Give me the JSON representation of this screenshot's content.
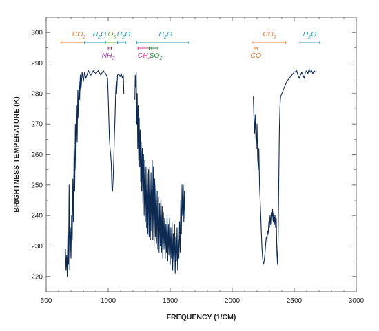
{
  "chart_data": {
    "type": "line",
    "title": "",
    "xlabel": "FREQUENCY (1/CM)",
    "ylabel": "BRIGHTNESS TEMPERATURE (K)",
    "xlim": [
      500,
      3000
    ],
    "ylim": [
      215,
      305
    ],
    "x_ticks": [
      500,
      1000,
      1500,
      2000,
      2500,
      3000
    ],
    "y_ticks": [
      220,
      230,
      240,
      250,
      260,
      270,
      280,
      290,
      300
    ],
    "grid": false,
    "line_color": "#0d2a52",
    "series": [
      {
        "segments": [
          [
            [
              655,
              229
            ],
            [
              660,
              222
            ],
            [
              665,
              227
            ],
            [
              670,
              220
            ],
            [
              675,
              234
            ],
            [
              680,
              224
            ],
            [
              685,
              250
            ],
            [
              690,
              222
            ],
            [
              695,
              236
            ],
            [
              700,
              226
            ],
            [
              705,
              240
            ],
            [
              710,
              232
            ],
            [
              715,
              252
            ],
            [
              720,
              238
            ],
            [
              725,
              262
            ],
            [
              730,
              248
            ],
            [
              735,
              270
            ],
            [
              740,
              255
            ],
            [
              745,
              276
            ],
            [
              750,
              264
            ],
            [
              755,
              281
            ],
            [
              760,
              272
            ],
            [
              765,
              284
            ],
            [
              770,
              278
            ],
            [
              775,
              286
            ],
            [
              780,
              281
            ],
            [
              790,
              287
            ],
            [
              800,
              284
            ],
            [
              810,
              287
            ],
            [
              820,
              285
            ],
            [
              840,
              287.5
            ],
            [
              860,
              286
            ],
            [
              880,
              287.5
            ],
            [
              900,
              286.5
            ],
            [
              920,
              287.5
            ],
            [
              940,
              286
            ],
            [
              960,
              287.5
            ],
            [
              980,
              286.5
            ],
            [
              995,
              285
            ],
            [
              1000,
              279
            ],
            [
              1005,
              272
            ],
            [
              1010,
              265
            ],
            [
              1015,
              262
            ],
            [
              1020,
              260
            ],
            [
              1025,
              257
            ],
            [
              1030,
              249
            ],
            [
              1035,
              248
            ],
            [
              1040,
              252
            ],
            [
              1045,
              258
            ],
            [
              1050,
              266
            ],
            [
              1055,
              272
            ],
            [
              1060,
              280
            ],
            [
              1065,
              284
            ],
            [
              1068,
              280
            ],
            [
              1075,
              286
            ],
            [
              1085,
              286.5
            ],
            [
              1095,
              285.5
            ],
            [
              1105,
              286.5
            ],
            [
              1115,
              285
            ],
            [
              1122,
              286
            ],
            [
              1126,
              280
            ]
          ],
          [
            [
              1215,
              278
            ],
            [
              1218,
              286
            ],
            [
              1222,
              282
            ],
            [
              1226,
              287
            ],
            [
              1230,
              270
            ],
            [
              1234,
              280
            ],
            [
              1238,
              262
            ],
            [
              1242,
              276
            ],
            [
              1246,
              258
            ],
            [
              1250,
              272
            ],
            [
              1254,
              256
            ],
            [
              1258,
              268
            ],
            [
              1262,
              251
            ],
            [
              1266,
              264
            ],
            [
              1270,
              248
            ],
            [
              1275,
              262
            ],
            [
              1280,
              244
            ],
            [
              1285,
              260
            ],
            [
              1290,
              240
            ],
            [
              1295,
              258
            ],
            [
              1300,
              238
            ],
            [
              1305,
              256
            ],
            [
              1310,
              236
            ],
            [
              1315,
              254
            ],
            [
              1320,
              234
            ],
            [
              1325,
              255
            ],
            [
              1330,
              233
            ],
            [
              1335,
              256
            ],
            [
              1340,
              232
            ],
            [
              1345,
              254
            ],
            [
              1350,
              235
            ],
            [
              1355,
              258
            ],
            [
              1360,
              232
            ],
            [
              1365,
              256
            ],
            [
              1370,
              230
            ],
            [
              1375,
              252
            ],
            [
              1380,
              233
            ],
            [
              1385,
              250
            ],
            [
              1390,
              231
            ],
            [
              1395,
              248
            ],
            [
              1400,
              229
            ],
            [
              1405,
              246
            ],
            [
              1410,
              228
            ],
            [
              1415,
              244
            ],
            [
              1420,
              230
            ],
            [
              1425,
              246
            ],
            [
              1430,
              228
            ],
            [
              1435,
              243
            ],
            [
              1440,
              226
            ],
            [
              1445,
              241
            ],
            [
              1450,
              229
            ],
            [
              1455,
              239
            ],
            [
              1460,
              226
            ],
            [
              1465,
              237
            ],
            [
              1470,
              228
            ],
            [
              1475,
              240
            ],
            [
              1480,
              225
            ],
            [
              1485,
              237
            ],
            [
              1490,
              227
            ],
            [
              1495,
              239
            ],
            [
              1500,
              224
            ],
            [
              1505,
              236
            ],
            [
              1510,
              226
            ],
            [
              1515,
              238
            ],
            [
              1520,
              222
            ],
            [
              1525,
              234
            ],
            [
              1530,
              225
            ],
            [
              1535,
              237
            ],
            [
              1540,
              221
            ],
            [
              1545,
              233
            ],
            [
              1550,
              225
            ],
            [
              1555,
              236
            ],
            [
              1560,
              222
            ],
            [
              1565,
              232
            ],
            [
              1570,
              226
            ],
            [
              1575,
              238
            ],
            [
              1580,
              228
            ],
            [
              1585,
              245
            ],
            [
              1590,
              234
            ],
            [
              1595,
              250
            ],
            [
              1600,
              240
            ],
            [
              1605,
              250
            ],
            [
              1610,
              238
            ],
            [
              1615,
              248
            ],
            [
              1620,
              240
            ]
          ],
          [
            [
              2170,
              279
            ],
            [
              2175,
              272
            ],
            [
              2180,
              267
            ],
            [
              2185,
              273
            ],
            [
              2190,
              266
            ],
            [
              2195,
              262
            ],
            [
              2200,
              270
            ],
            [
              2205,
              259
            ],
            [
              2210,
              255
            ],
            [
              2215,
              262
            ],
            [
              2220,
              250
            ],
            [
              2225,
              245
            ],
            [
              2230,
              240
            ],
            [
              2235,
              234
            ],
            [
              2240,
              229
            ],
            [
              2245,
              226
            ],
            [
              2250,
              224
            ],
            [
              2255,
              224.5
            ],
            [
              2260,
              226
            ],
            [
              2265,
              228
            ],
            [
              2270,
              231
            ],
            [
              2275,
              233
            ],
            [
              2280,
              232
            ],
            [
              2285,
              235
            ],
            [
              2290,
              234
            ],
            [
              2295,
              238
            ],
            [
              2300,
              236
            ],
            [
              2305,
              240
            ],
            [
              2310,
              237
            ],
            [
              2315,
              241
            ],
            [
              2320,
              239
            ],
            [
              2325,
              242
            ],
            [
              2330,
              238
            ],
            [
              2335,
              241
            ],
            [
              2340,
              237
            ],
            [
              2345,
              240
            ],
            [
              2350,
              236
            ],
            [
              2355,
              239
            ],
            [
              2360,
              228
            ],
            [
              2365,
              224
            ],
            [
              2370,
              232
            ],
            [
              2375,
              250
            ],
            [
              2380,
              268
            ],
            [
              2385,
              276
            ],
            [
              2390,
              279
            ],
            [
              2400,
              280
            ],
            [
              2410,
              281
            ],
            [
              2420,
              282
            ],
            [
              2430,
              283
            ],
            [
              2440,
              284
            ],
            [
              2450,
              284.5
            ],
            [
              2460,
              285
            ],
            [
              2470,
              285.5
            ],
            [
              2480,
              286
            ],
            [
              2490,
              286.5
            ],
            [
              2500,
              287
            ],
            [
              2510,
              287.2
            ],
            [
              2520,
              287.5
            ],
            [
              2530,
              286
            ],
            [
              2540,
              285
            ],
            [
              2550,
              286
            ],
            [
              2560,
              287
            ],
            [
              2570,
              286
            ],
            [
              2580,
              285
            ],
            [
              2590,
              287
            ],
            [
              2600,
              287.5
            ],
            [
              2610,
              286.5
            ],
            [
              2620,
              288
            ],
            [
              2630,
              287
            ],
            [
              2640,
              287.5
            ],
            [
              2650,
              286.5
            ],
            [
              2660,
              287.5
            ],
            [
              2670,
              287
            ],
            [
              2680,
              287.2
            ]
          ]
        ]
      }
    ],
    "annotations": [
      {
        "base": "CO",
        "sub": "2",
        "color": "#e8752d",
        "x1": 620,
        "x2": 810,
        "label_x": 765,
        "row": "top"
      },
      {
        "base": "H",
        "sub": "2",
        "post": "O",
        "color": "#2aa0b8",
        "x1": 810,
        "x2": 975,
        "label_x": 930,
        "row": "top"
      },
      {
        "base": "O",
        "sub": "3",
        "color": "#7ab82e",
        "x1": 980,
        "x2": 1075,
        "label_x": 1030,
        "row": "top"
      },
      {
        "base": "H",
        "sub": "2",
        "post": "O",
        "color": "#2aa0b8",
        "x1": 1075,
        "x2": 1140,
        "label_x": 1125,
        "row": "top"
      },
      {
        "base": "H",
        "sub": "2",
        "post": "O",
        "color": "#2aa0b8",
        "x1": 1230,
        "x2": 1650,
        "label_x": 1462,
        "row": "top"
      },
      {
        "base": "CO",
        "sub": "2",
        "color": "#e8752d",
        "x1": 2160,
        "x2": 2430,
        "label_x": 2300,
        "row": "top"
      },
      {
        "base": "H",
        "sub": "2",
        "post": "O",
        "color": "#2aa0b8",
        "x1": 2545,
        "x2": 2705,
        "label_x": 2625,
        "row": "top"
      },
      {
        "base": "NH",
        "sub": "3",
        "color": "#b03ab0",
        "x1": 1000,
        "x2": 1025,
        "label_x": 1000,
        "row": "bottom"
      },
      {
        "base": "CH",
        "sub": "4",
        "color": "#d43d8c",
        "x1": 1240,
        "x2": 1350,
        "label_x": 1290,
        "row": "bottom"
      },
      {
        "base": "SO",
        "sub": "2",
        "color": "#2e8b3a",
        "x1": 1330,
        "x2": 1400,
        "label_x": 1383,
        "row": "bottom"
      },
      {
        "base": "CO",
        "sub": "",
        "color": "#e8752d",
        "x1": 2175,
        "x2": 2205,
        "label_x": 2190,
        "row": "bottom"
      }
    ]
  }
}
